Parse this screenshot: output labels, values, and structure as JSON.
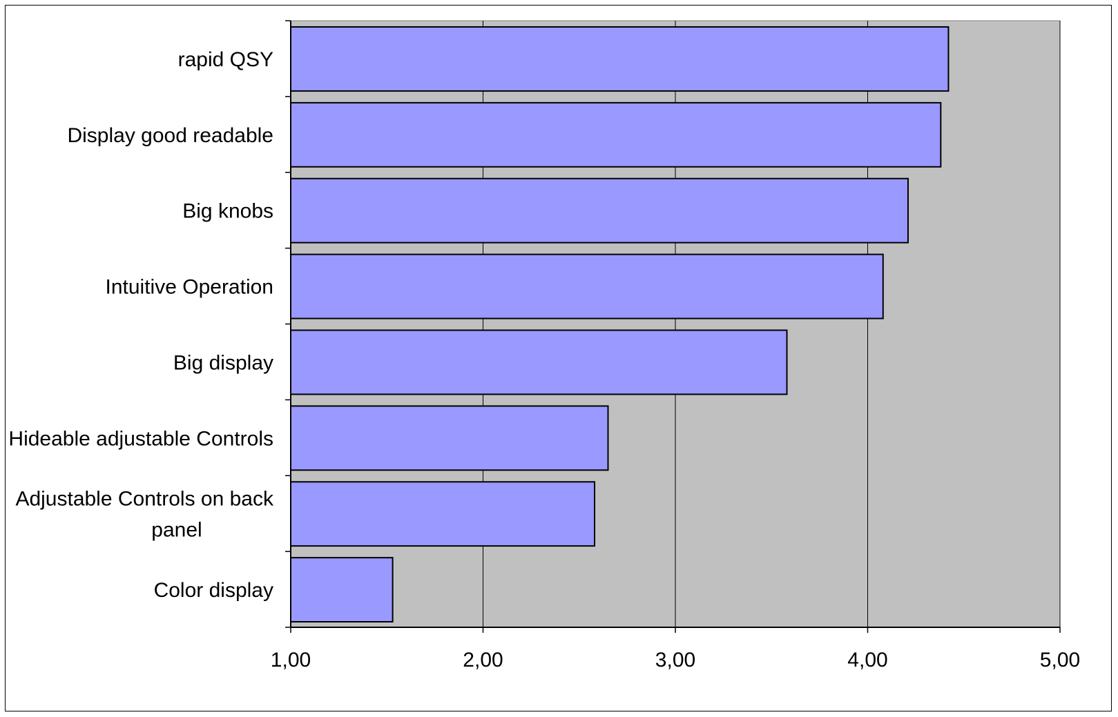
{
  "chart_data": {
    "type": "bar",
    "orientation": "horizontal",
    "categories": [
      "rapid QSY",
      "Display good readable",
      "Big knobs",
      "Intuitive Operation",
      "Big display",
      "Hideable adjustable Controls",
      "Adjustable Controls on back panel",
      "Color display"
    ],
    "category_lines": [
      [
        "rapid QSY"
      ],
      [
        "Display good readable"
      ],
      [
        "Big knobs"
      ],
      [
        "Intuitive Operation"
      ],
      [
        "Big display"
      ],
      [
        "Hideable adjustable Controls"
      ],
      [
        "Adjustable Controls on back",
        "panel"
      ],
      [
        "Color display"
      ]
    ],
    "values": [
      4.42,
      4.38,
      4.21,
      4.08,
      3.58,
      2.65,
      2.58,
      1.53
    ],
    "xlim": [
      1,
      5
    ],
    "x_ticks": [
      1,
      2,
      3,
      4,
      5
    ],
    "x_tick_labels": [
      "1,00",
      "2,00",
      "3,00",
      "4,00",
      "5,00"
    ],
    "title": "",
    "xlabel": "",
    "ylabel": "",
    "grid": "vertical",
    "legend": "none",
    "colors": {
      "bar_fill": "#9999ff",
      "bar_stroke": "#000000",
      "plot_background": "#c0c0c0",
      "grid": "#000000",
      "axis": "#000000"
    }
  }
}
